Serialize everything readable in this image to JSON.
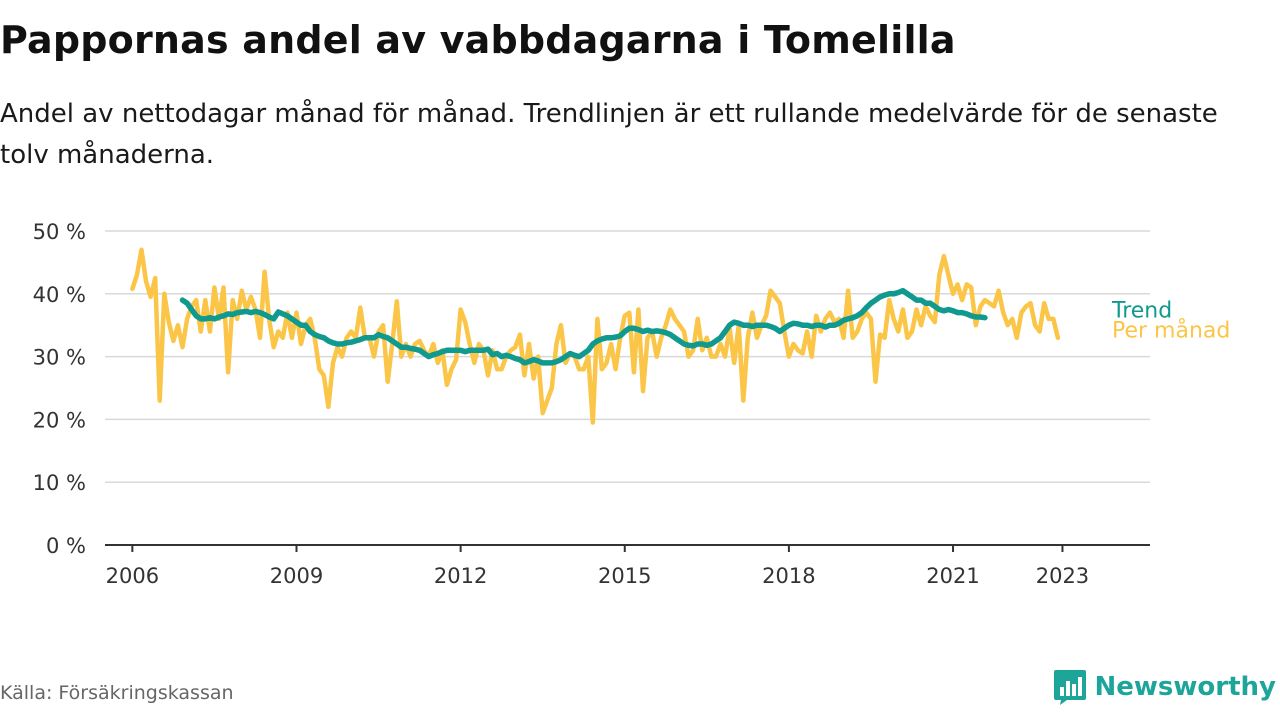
{
  "title": "Pappornas andel av vabbdagarna i Tomelilla",
  "subtitle": "Andel av nettodagar månad för månad. Trendlinjen är ett rullande medelvärde för de senaste tolv månaderna.",
  "source": "Källa: Försäkringskassan",
  "brand": "Newsworthy",
  "colors": {
    "trend": "#10998e",
    "monthly": "#fbc548",
    "grid": "#d9d9d9",
    "axis": "#333333",
    "brand": "#1ea59a"
  },
  "chart_data": {
    "type": "line",
    "ylim": [
      0,
      50
    ],
    "xlim": [
      2005.5,
      2024.6
    ],
    "grid": true,
    "y_ticks": [
      0,
      10,
      20,
      30,
      40,
      50
    ],
    "y_tick_labels": [
      "0 %",
      "10 %",
      "20 %",
      "30 %",
      "40 %",
      "50 %"
    ],
    "x_ticks": [
      2006,
      2009,
      2012,
      2015,
      2018,
      2021,
      2023
    ],
    "x_tick_labels": [
      "2006",
      "2009",
      "2012",
      "2015",
      "2018",
      "2021",
      "2023"
    ],
    "series": [
      {
        "name": "Per månad",
        "color": "#fbc548",
        "x_start": 2006.0,
        "x_step": 0.08333,
        "values": [
          40.8,
          43.0,
          47.0,
          42.0,
          39.5,
          42.5,
          23.0,
          40.0,
          35.5,
          32.5,
          35.0,
          31.5,
          36.0,
          38.0,
          39.0,
          34.0,
          39.0,
          34.0,
          41.0,
          36.0,
          41.0,
          27.5,
          39.0,
          36.0,
          40.5,
          37.5,
          39.5,
          37.5,
          33.0,
          43.5,
          36.0,
          31.5,
          34.0,
          33.0,
          37.0,
          33.0,
          37.0,
          32.0,
          35.0,
          36.0,
          33.0,
          28.0,
          27.0,
          22.0,
          29.0,
          31.5,
          30.0,
          33.0,
          34.0,
          33.0,
          37.8,
          33.0,
          33.0,
          30.0,
          34.0,
          35.0,
          26.0,
          32.0,
          38.8,
          30.0,
          32.0,
          30.0,
          32.0,
          32.5,
          31.0,
          30.0,
          32.0,
          29.0,
          31.0,
          25.5,
          28.0,
          29.5,
          37.5,
          35.5,
          32.0,
          29.0,
          32.0,
          31.0,
          27.0,
          31.0,
          28.0,
          28.0,
          30.0,
          31.0,
          31.5,
          33.5,
          27.0,
          32.0,
          26.5,
          30.0,
          21.0,
          23.0,
          25.0,
          32.0,
          35.0,
          29.0,
          30.5,
          30.0,
          28.0,
          28.0,
          30.0,
          19.5,
          36.0,
          28.0,
          29.0,
          32.0,
          28.0,
          33.0,
          36.5,
          37.0,
          27.5,
          37.5,
          24.5,
          33.0,
          34.0,
          30.0,
          33.0,
          35.0,
          37.5,
          36.0,
          35.0,
          34.0,
          30.0,
          31.0,
          36.0,
          31.0,
          33.0,
          30.0,
          30.0,
          32.0,
          30.0,
          34.5,
          29.0,
          35.0,
          23.0,
          33.0,
          37.0,
          33.0,
          35.0,
          36.5,
          40.5,
          39.5,
          38.5,
          34.0,
          30.0,
          32.0,
          31.0,
          30.5,
          34.0,
          30.0,
          36.5,
          34.0,
          36.0,
          37.0,
          35.5,
          36.0,
          33.0,
          40.5,
          33.0,
          34.0,
          36.0,
          37.0,
          36.0,
          26.0,
          33.5,
          33.0,
          39.0,
          36.0,
          34.0,
          37.5,
          33.0,
          34.0,
          37.5,
          35.0,
          38.0,
          36.5,
          35.5,
          43.0,
          46.0,
          43.0,
          40.0,
          41.5,
          39.0,
          41.5,
          41.0,
          35.0,
          38.0,
          39.0,
          38.5,
          38.0,
          40.5,
          37.0,
          35.0,
          36.0,
          33.0,
          37.0,
          38.0,
          38.5,
          35.0,
          34.0,
          38.5,
          36.0,
          36.0,
          33.0
        ]
      },
      {
        "name": "Trend",
        "color": "#10998e",
        "x_start": 2006.917,
        "x_step": 0.08333,
        "values": [
          39.0,
          38.5,
          37.5,
          36.5,
          36.0,
          36.0,
          36.2,
          36.0,
          36.3,
          36.5,
          36.8,
          36.7,
          37.0,
          37.1,
          37.2,
          37.0,
          37.2,
          37.0,
          36.7,
          36.3,
          36.0,
          37.1,
          36.8,
          36.5,
          36.0,
          35.5,
          35.0,
          35.0,
          34.0,
          33.5,
          33.2,
          33.0,
          32.5,
          32.2,
          32.0,
          32.0,
          32.2,
          32.3,
          32.5,
          32.7,
          33.0,
          33.0,
          33.0,
          33.5,
          33.2,
          33.0,
          32.5,
          32.0,
          31.5,
          31.5,
          31.3,
          31.2,
          31.0,
          30.5,
          30.0,
          30.3,
          30.5,
          30.8,
          31.0,
          31.0,
          31.0,
          31.0,
          30.8,
          31.0,
          31.0,
          31.0,
          31.0,
          31.2,
          30.3,
          30.5,
          30.0,
          30.2,
          30.0,
          29.7,
          29.5,
          29.0,
          29.2,
          29.5,
          29.3,
          29.0,
          29.0,
          29.0,
          29.2,
          29.5,
          30.0,
          30.5,
          30.2,
          30.0,
          30.5,
          31.0,
          32.0,
          32.5,
          32.8,
          33.0,
          33.0,
          33.1,
          33.3,
          34.0,
          34.5,
          34.5,
          34.3,
          34.0,
          34.2,
          34.0,
          34.1,
          34.0,
          33.8,
          33.5,
          33.0,
          32.5,
          32.0,
          31.8,
          31.7,
          32.0,
          32.0,
          31.8,
          32.0,
          32.5,
          33.0,
          34.0,
          35.0,
          35.5,
          35.3,
          35.0,
          35.0,
          34.8,
          35.0,
          35.0,
          35.0,
          34.8,
          34.5,
          34.0,
          34.5,
          35.0,
          35.3,
          35.2,
          35.0,
          35.0,
          34.8,
          35.0,
          35.0,
          34.7,
          35.0,
          35.0,
          35.3,
          35.8,
          36.0,
          36.2,
          36.5,
          37.0,
          37.8,
          38.5,
          39.0,
          39.5,
          39.8,
          40.0,
          40.0,
          40.2,
          40.5,
          40.0,
          39.5,
          39.0,
          39.0,
          38.5,
          38.5,
          38.0,
          37.5,
          37.3,
          37.5,
          37.3,
          37.0,
          37.0,
          36.8,
          36.5,
          36.3,
          36.3,
          36.2
        ]
      }
    ]
  }
}
